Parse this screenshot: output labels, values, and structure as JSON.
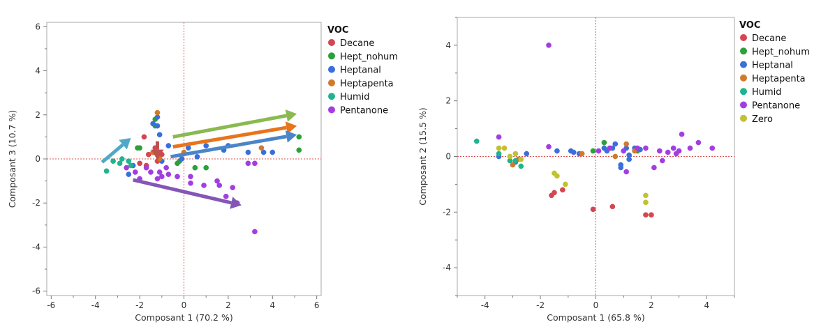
{
  "chart_data": [
    {
      "type": "scatter",
      "xlabel": "Composant 1  (70.2 %)",
      "ylabel": "Composant 3  (10.7 %)",
      "xlim": [
        -6.2,
        6.2
      ],
      "ylim": [
        -6.2,
        6.2
      ],
      "xticks": [
        -6,
        -4,
        -2,
        0,
        2,
        4,
        6
      ],
      "yticks": [
        -6,
        -4,
        -2,
        0,
        2,
        4,
        6
      ],
      "xtick_labels": [
        "-6",
        "-4",
        "-2",
        "0",
        "2",
        "4",
        "6"
      ],
      "ytick_labels": [
        "-6",
        "-4",
        "-2",
        "0",
        "2",
        "4",
        "6"
      ],
      "reference_lines": {
        "x": 0,
        "y": 0
      },
      "legend": {
        "title": "VOC",
        "position": "right"
      },
      "series": [
        {
          "name": "Decane",
          "color": "#d64550",
          "points": [
            [
              -1.6,
              0.2
            ],
            [
              -1.4,
              0.3
            ],
            [
              -1.0,
              0.2
            ],
            [
              -1.7,
              -0.3
            ],
            [
              -1.3,
              0.5
            ],
            [
              -1.8,
              1.0
            ],
            [
              -2.0,
              -0.2
            ],
            [
              -1.2,
              -0.1
            ]
          ]
        },
        {
          "name": "Hept_nohum",
          "color": "#2ca039",
          "points": [
            [
              -1.3,
              1.8
            ],
            [
              -2.1,
              0.5
            ],
            [
              -2.0,
              0.5
            ],
            [
              -1.3,
              1.5
            ],
            [
              -0.2,
              -0.1
            ],
            [
              -0.3,
              -0.2
            ],
            [
              5.2,
              1.0
            ],
            [
              5.2,
              0.4
            ],
            [
              0.5,
              -0.4
            ],
            [
              1.0,
              -0.4
            ]
          ]
        },
        {
          "name": "Heptanal",
          "color": "#3a6fdb",
          "points": [
            [
              -1.2,
              1.9
            ],
            [
              -1.4,
              1.6
            ],
            [
              -1.2,
              1.5
            ],
            [
              -1.1,
              1.1
            ],
            [
              -0.7,
              0.6
            ],
            [
              0.2,
              0.5
            ],
            [
              1.0,
              0.6
            ],
            [
              1.8,
              0.4
            ],
            [
              2.0,
              0.6
            ],
            [
              2.9,
              0.3
            ],
            [
              3.6,
              0.3
            ],
            [
              4.0,
              0.3
            ],
            [
              0.6,
              0.1
            ],
            [
              -1.0,
              -0.1
            ],
            [
              -0.1,
              0.0
            ],
            [
              -2.3,
              -0.3
            ],
            [
              -2.5,
              -0.7
            ]
          ]
        },
        {
          "name": "Heptapenta",
          "color": "#d07a2a",
          "points": [
            [
              -1.2,
              2.1
            ],
            [
              -1.4,
              0.3
            ],
            [
              0.0,
              0.3
            ],
            [
              3.5,
              0.5
            ],
            [
              -1.1,
              0.0
            ]
          ]
        },
        {
          "name": "Humid",
          "color": "#20b38e",
          "points": [
            [
              -3.5,
              -0.55
            ],
            [
              -3.2,
              -0.1
            ],
            [
              -2.9,
              -0.2
            ],
            [
              -2.8,
              0.0
            ],
            [
              -2.5,
              -0.1
            ],
            [
              -2.4,
              -0.3
            ]
          ]
        },
        {
          "name": "Pentanone",
          "color": "#a23ee0",
          "points": [
            [
              -2.0,
              -0.9
            ],
            [
              -1.7,
              -0.4
            ],
            [
              -1.2,
              -0.9
            ],
            [
              -1.0,
              -0.8
            ],
            [
              -0.7,
              -0.7
            ],
            [
              -0.3,
              -0.8
            ],
            [
              0.3,
              -0.8
            ],
            [
              0.3,
              -1.1
            ],
            [
              0.9,
              -1.2
            ],
            [
              1.5,
              -1.0
            ],
            [
              1.6,
              -1.2
            ],
            [
              2.2,
              -1.3
            ],
            [
              1.9,
              -1.7
            ],
            [
              2.4,
              -2.0
            ],
            [
              3.2,
              -3.3
            ],
            [
              2.9,
              -0.2
            ],
            [
              3.2,
              -0.2
            ],
            [
              -2.2,
              -0.6
            ],
            [
              -1.1,
              -0.6
            ],
            [
              -2.6,
              -0.4
            ],
            [
              -1.5,
              -0.6
            ],
            [
              -0.8,
              -0.4
            ]
          ]
        }
      ],
      "annotations": [
        {
          "type": "arrow",
          "color": "#8ab951",
          "from": [
            -0.5,
            1.0
          ],
          "to": [
            5.1,
            2.05
          ]
        },
        {
          "type": "arrow",
          "color": "#e8741c",
          "from": [
            -0.5,
            0.55
          ],
          "to": [
            5.1,
            1.5
          ]
        },
        {
          "type": "arrow",
          "color": "#4a86c7",
          "from": [
            -0.6,
            0.1
          ],
          "to": [
            5.1,
            1.1
          ]
        },
        {
          "type": "arrow",
          "color": "#4fa8c6",
          "from": [
            -3.7,
            -0.15
          ],
          "to": [
            -2.4,
            0.95
          ]
        },
        {
          "type": "arrow",
          "color": "#c0504d",
          "from": [
            -1.2,
            0.8
          ],
          "to": [
            -1.2,
            -0.05
          ]
        },
        {
          "type": "arrow",
          "color": "#8456b5",
          "from": [
            -2.3,
            -0.95
          ],
          "to": [
            2.6,
            -2.1
          ]
        }
      ]
    },
    {
      "type": "scatter",
      "xlabel": "Composant 1  (65.8 %)",
      "ylabel": "Composant 2  (15.5 %)",
      "xlim": [
        -5.0,
        5.0
      ],
      "ylim": [
        -5.0,
        5.0
      ],
      "xticks": [
        -4,
        -2,
        0,
        2,
        4
      ],
      "yticks": [
        -4,
        -2,
        0,
        2,
        4
      ],
      "xtick_labels": [
        "-4",
        "-2",
        "0",
        "2",
        "4"
      ],
      "ytick_labels": [
        "-4",
        "-2",
        "0",
        "2",
        "4"
      ],
      "reference_lines": {
        "x": 0,
        "y": 0
      },
      "legend": {
        "title": "VOC",
        "position": "right"
      },
      "series": [
        {
          "name": "Decane",
          "color": "#d64550",
          "points": [
            [
              -1.2,
              -1.2
            ],
            [
              -1.5,
              -1.3
            ],
            [
              -1.6,
              -1.4
            ],
            [
              -0.1,
              -1.9
            ],
            [
              0.6,
              -1.8
            ],
            [
              1.8,
              -2.1
            ],
            [
              2.0,
              -2.1
            ]
          ]
        },
        {
          "name": "Hept_nohum",
          "color": "#2ca039",
          "points": [
            [
              -0.1,
              0.2
            ],
            [
              0.3,
              0.5
            ],
            [
              1.5,
              0.2
            ]
          ]
        },
        {
          "name": "Heptanal",
          "color": "#3a6fdb",
          "points": [
            [
              -2.5,
              0.1
            ],
            [
              -3.5,
              0.0
            ],
            [
              -2.9,
              -0.2
            ],
            [
              -1.4,
              0.2
            ],
            [
              -0.9,
              0.2
            ],
            [
              -0.6,
              0.1
            ],
            [
              0.4,
              0.2
            ],
            [
              0.6,
              0.3
            ],
            [
              0.7,
              0.45
            ],
            [
              0.9,
              -0.3
            ],
            [
              0.9,
              -0.4
            ],
            [
              1.1,
              0.3
            ],
            [
              1.2,
              0.05
            ],
            [
              1.4,
              0.3
            ],
            [
              1.6,
              0.25
            ],
            [
              1.2,
              -0.1
            ],
            [
              0.3,
              0.3
            ],
            [
              -0.8,
              0.15
            ]
          ]
        },
        {
          "name": "Heptapenta",
          "color": "#d07a2a",
          "points": [
            [
              -3.0,
              -0.3
            ],
            [
              -2.8,
              -0.1
            ],
            [
              -0.5,
              0.1
            ],
            [
              0.5,
              0.3
            ],
            [
              1.1,
              0.45
            ],
            [
              1.4,
              0.2
            ],
            [
              0.7,
              0.0
            ]
          ]
        },
        {
          "name": "Humid",
          "color": "#20b38e",
          "points": [
            [
              -4.3,
              0.55
            ],
            [
              -3.5,
              0.1
            ],
            [
              -3.1,
              -0.15
            ],
            [
              -2.9,
              -0.15
            ],
            [
              -2.7,
              -0.35
            ]
          ]
        },
        {
          "name": "Pentanone",
          "color": "#a23ee0",
          "points": [
            [
              -1.7,
              4.0
            ],
            [
              -3.5,
              0.7
            ],
            [
              -1.7,
              0.35
            ],
            [
              0.1,
              0.2
            ],
            [
              0.5,
              0.3
            ],
            [
              1.0,
              0.2
            ],
            [
              1.1,
              -0.55
            ],
            [
              1.5,
              0.3
            ],
            [
              1.8,
              0.3
            ],
            [
              2.1,
              -0.4
            ],
            [
              2.3,
              0.2
            ],
            [
              2.4,
              -0.15
            ],
            [
              2.6,
              0.15
            ],
            [
              2.8,
              0.3
            ],
            [
              2.9,
              0.1
            ],
            [
              3.1,
              0.8
            ],
            [
              3.4,
              0.3
            ],
            [
              3.7,
              0.5
            ],
            [
              4.2,
              0.3
            ],
            [
              3.0,
              0.2
            ]
          ]
        },
        {
          "name": "Zero",
          "color": "#c2c130",
          "points": [
            [
              -3.5,
              0.3
            ],
            [
              -3.3,
              0.3
            ],
            [
              -3.1,
              0.0
            ],
            [
              -2.9,
              0.1
            ],
            [
              -2.7,
              -0.1
            ],
            [
              -1.5,
              -0.6
            ],
            [
              -1.4,
              -0.7
            ],
            [
              -1.1,
              -1.0
            ],
            [
              1.8,
              -1.4
            ],
            [
              1.8,
              -1.65
            ]
          ]
        }
      ]
    }
  ]
}
